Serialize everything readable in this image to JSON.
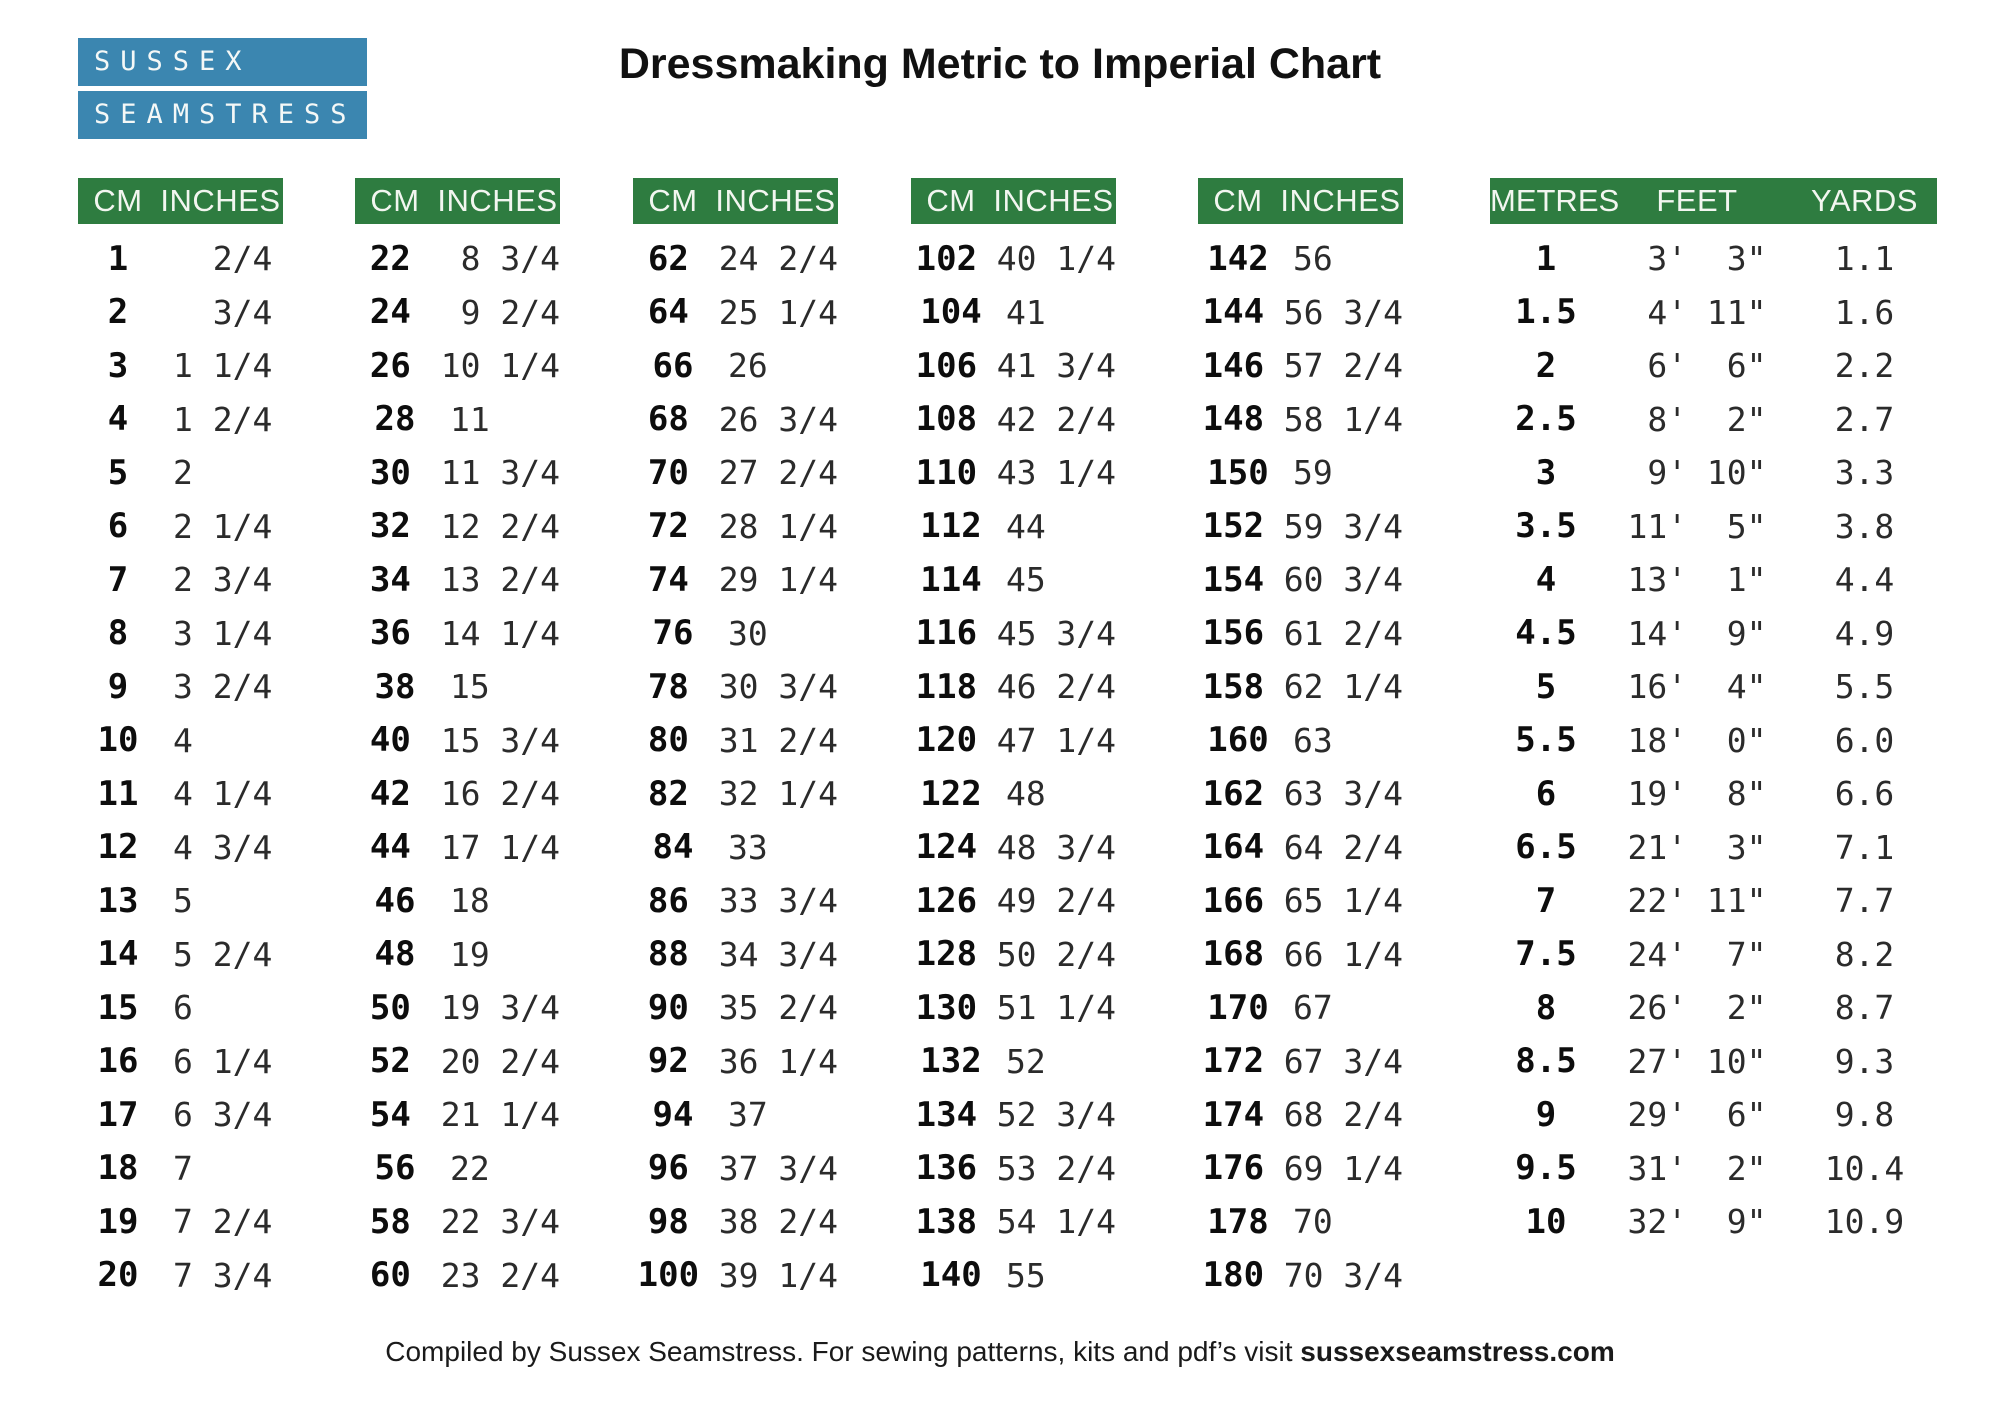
{
  "title": "Dressmaking Metric to Imperial Chart",
  "logo": {
    "line1": "SUSSEX",
    "line2": "SEAMSTRESS"
  },
  "colors": {
    "header_green": "#2e7c40",
    "logo_blue": "#3b86b0",
    "text_black": "#111111"
  },
  "cm_tables": [
    {
      "headers": [
        "CM",
        "INCHES"
      ],
      "rows": [
        [
          "1",
          "  2/4"
        ],
        [
          "2",
          "  3/4"
        ],
        [
          "3",
          "1 1/4"
        ],
        [
          "4",
          "1 2/4"
        ],
        [
          "5",
          "2"
        ],
        [
          "6",
          "2 1/4"
        ],
        [
          "7",
          "2 3/4"
        ],
        [
          "8",
          "3 1/4"
        ],
        [
          "9",
          "3 2/4"
        ],
        [
          "10",
          "4"
        ],
        [
          "11",
          "4 1/4"
        ],
        [
          "12",
          "4 3/4"
        ],
        [
          "13",
          "5"
        ],
        [
          "14",
          "5 2/4"
        ],
        [
          "15",
          "6"
        ],
        [
          "16",
          "6 1/4"
        ],
        [
          "17",
          "6 3/4"
        ],
        [
          "18",
          "7"
        ],
        [
          "19",
          "7 2/4"
        ],
        [
          "20",
          "7 3/4"
        ]
      ]
    },
    {
      "headers": [
        "CM",
        "INCHES"
      ],
      "rows": [
        [
          "22",
          " 8 3/4"
        ],
        [
          "24",
          " 9 2/4"
        ],
        [
          "26",
          "10 1/4"
        ],
        [
          "28",
          "11"
        ],
        [
          "30",
          "11 3/4"
        ],
        [
          "32",
          "12 2/4"
        ],
        [
          "34",
          "13 2/4"
        ],
        [
          "36",
          "14 1/4"
        ],
        [
          "38",
          "15"
        ],
        [
          "40",
          "15 3/4"
        ],
        [
          "42",
          "16 2/4"
        ],
        [
          "44",
          "17 1/4"
        ],
        [
          "46",
          "18"
        ],
        [
          "48",
          "19"
        ],
        [
          "50",
          "19 3/4"
        ],
        [
          "52",
          "20 2/4"
        ],
        [
          "54",
          "21 1/4"
        ],
        [
          "56",
          "22"
        ],
        [
          "58",
          "22 3/4"
        ],
        [
          "60",
          "23 2/4"
        ]
      ]
    },
    {
      "headers": [
        "CM",
        "INCHES"
      ],
      "rows": [
        [
          "62",
          "24 2/4"
        ],
        [
          "64",
          "25 1/4"
        ],
        [
          "66",
          "26"
        ],
        [
          "68",
          "26 3/4"
        ],
        [
          "70",
          "27 2/4"
        ],
        [
          "72",
          "28 1/4"
        ],
        [
          "74",
          "29 1/4"
        ],
        [
          "76",
          "30"
        ],
        [
          "78",
          "30 3/4"
        ],
        [
          "80",
          "31 2/4"
        ],
        [
          "82",
          "32 1/4"
        ],
        [
          "84",
          "33"
        ],
        [
          "86",
          "33 3/4"
        ],
        [
          "88",
          "34 3/4"
        ],
        [
          "90",
          "35 2/4"
        ],
        [
          "92",
          "36 1/4"
        ],
        [
          "94",
          "37"
        ],
        [
          "96",
          "37 3/4"
        ],
        [
          "98",
          "38 2/4"
        ],
        [
          "100",
          "39 1/4"
        ]
      ]
    },
    {
      "headers": [
        "CM",
        "INCHES"
      ],
      "rows": [
        [
          "102",
          "40 1/4"
        ],
        [
          "104",
          "41"
        ],
        [
          "106",
          "41 3/4"
        ],
        [
          "108",
          "42 2/4"
        ],
        [
          "110",
          "43 1/4"
        ],
        [
          "112",
          "44"
        ],
        [
          "114",
          "45"
        ],
        [
          "116",
          "45 3/4"
        ],
        [
          "118",
          "46 2/4"
        ],
        [
          "120",
          "47 1/4"
        ],
        [
          "122",
          "48"
        ],
        [
          "124",
          "48 3/4"
        ],
        [
          "126",
          "49 2/4"
        ],
        [
          "128",
          "50 2/4"
        ],
        [
          "130",
          "51 1/4"
        ],
        [
          "132",
          "52"
        ],
        [
          "134",
          "52 3/4"
        ],
        [
          "136",
          "53 2/4"
        ],
        [
          "138",
          "54 1/4"
        ],
        [
          "140",
          "55"
        ]
      ]
    },
    {
      "headers": [
        "CM",
        "INCHES"
      ],
      "rows": [
        [
          "142",
          "56"
        ],
        [
          "144",
          "56 3/4"
        ],
        [
          "146",
          "57 2/4"
        ],
        [
          "148",
          "58 1/4"
        ],
        [
          "150",
          "59"
        ],
        [
          "152",
          "59 3/4"
        ],
        [
          "154",
          "60 3/4"
        ],
        [
          "156",
          "61 2/4"
        ],
        [
          "158",
          "62 1/4"
        ],
        [
          "160",
          "63"
        ],
        [
          "162",
          "63 3/4"
        ],
        [
          "164",
          "64 2/4"
        ],
        [
          "166",
          "65 1/4"
        ],
        [
          "168",
          "66 1/4"
        ],
        [
          "170",
          "67"
        ],
        [
          "172",
          "67 3/4"
        ],
        [
          "174",
          "68 2/4"
        ],
        [
          "176",
          "69 1/4"
        ],
        [
          "178",
          "70"
        ],
        [
          "180",
          "70 3/4"
        ]
      ]
    }
  ],
  "metre_table": {
    "headers": [
      "METRES",
      "FEET",
      "YARDS"
    ],
    "rows": [
      [
        "1",
        " 3'  3\"",
        "1.1"
      ],
      [
        "1.5",
        " 4' 11\"",
        "1.6"
      ],
      [
        "2",
        " 6'  6\"",
        "2.2"
      ],
      [
        "2.5",
        " 8'  2\"",
        "2.7"
      ],
      [
        "3",
        " 9' 10\"",
        "3.3"
      ],
      [
        "3.5",
        "11'  5\"",
        "3.8"
      ],
      [
        "4",
        "13'  1\"",
        "4.4"
      ],
      [
        "4.5",
        "14'  9\"",
        "4.9"
      ],
      [
        "5",
        "16'  4\"",
        "5.5"
      ],
      [
        "5.5",
        "18'  0\"",
        "6.0"
      ],
      [
        "6",
        "19'  8\"",
        "6.6"
      ],
      [
        "6.5",
        "21'  3\"",
        "7.1"
      ],
      [
        "7",
        "22' 11\"",
        "7.7"
      ],
      [
        "7.5",
        "24'  7\"",
        "8.2"
      ],
      [
        "8",
        "26'  2\"",
        "8.7"
      ],
      [
        "8.5",
        "27' 10\"",
        "9.3"
      ],
      [
        "9",
        "29'  6\"",
        "9.8"
      ],
      [
        "9.5",
        "31'  2\"",
        "10.4"
      ],
      [
        "10",
        "32'  9\"",
        "10.9"
      ]
    ]
  },
  "footer": {
    "prefix": "Compiled by Sussex Seamstress.  For sewing patterns, kits and pdf’s visit ",
    "domain": "sussexseamstress.com"
  }
}
